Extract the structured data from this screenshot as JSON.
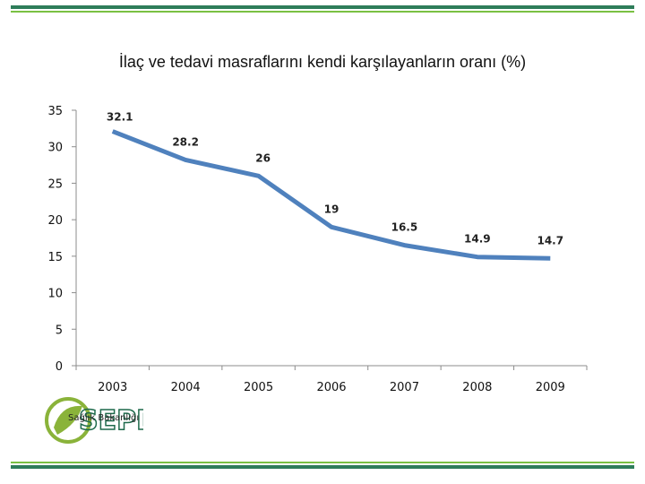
{
  "colors": {
    "line": "#4f81bd",
    "rule_thick": "#2e7d5a",
    "rule_thin": "#7ac143",
    "logo_green": "#8ab33a",
    "logo_dark": "#1f6a4c"
  },
  "logo": {
    "text": "Sağlık Bakanlığı",
    "icon": "sepd-logo"
  },
  "chart_data": {
    "type": "line",
    "title": "İlaç ve tedavi masraflarını kendi karşılayanların oranı (%)",
    "x": [
      "2003",
      "2004",
      "2005",
      "2006",
      "2007",
      "2008",
      "2009"
    ],
    "series": [
      {
        "values": [
          32.1,
          28.2,
          26,
          19,
          16.5,
          14.9,
          14.7
        ],
        "labels": [
          "32.1",
          "28.2",
          "26",
          "19",
          "16.5",
          "14.9",
          "14.7"
        ]
      }
    ],
    "ylim": [
      0,
      35
    ],
    "yticks": [
      "0",
      "5",
      "10",
      "15",
      "20",
      "25",
      "30",
      "35"
    ],
    "xlabel": "",
    "ylabel": "",
    "grid": false,
    "legend": "none"
  }
}
